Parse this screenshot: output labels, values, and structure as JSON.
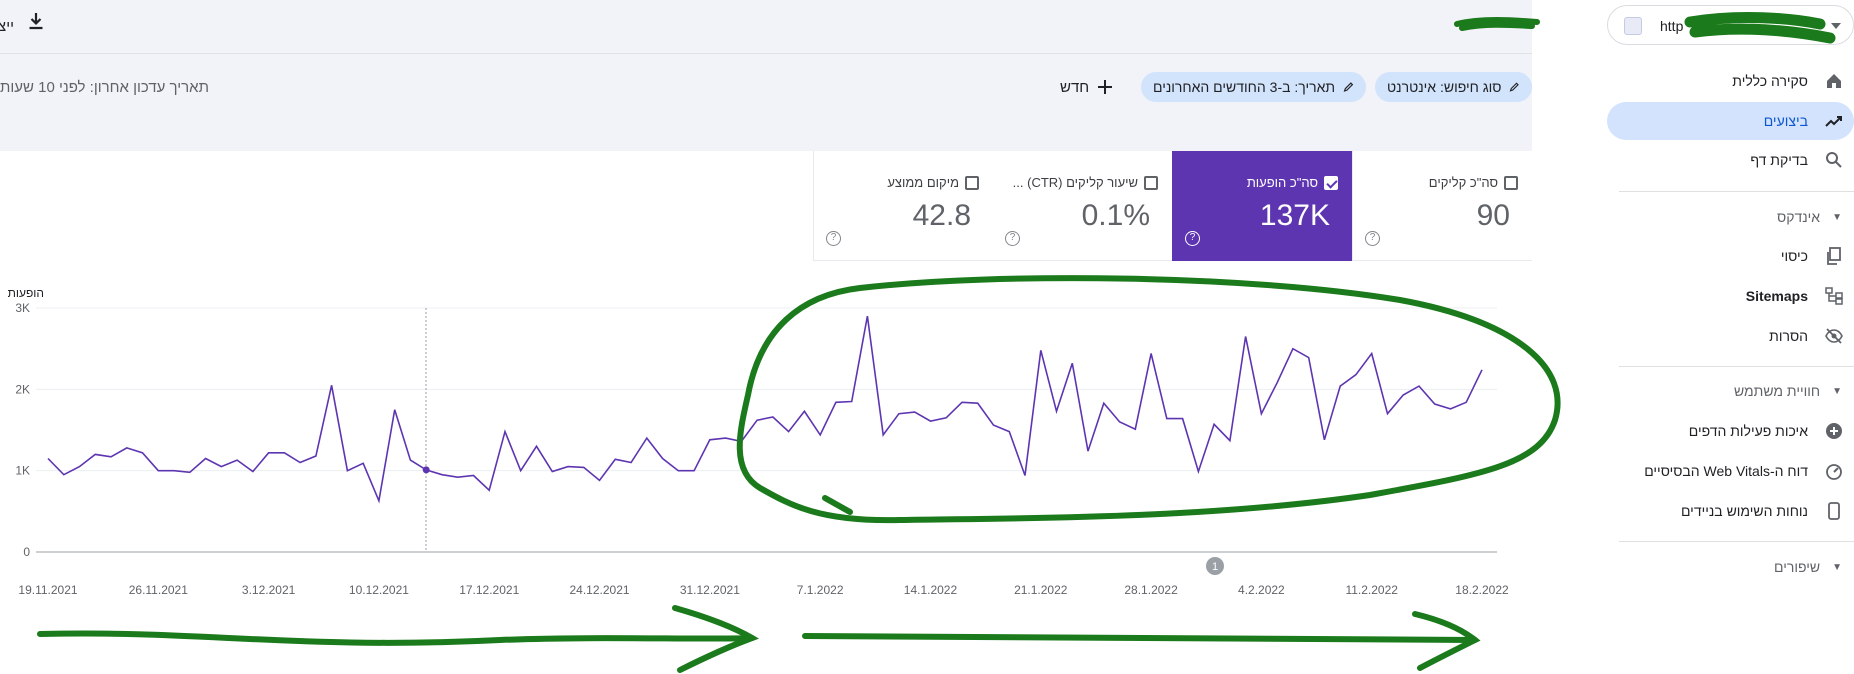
{
  "header": {
    "export_label": "ייצא",
    "property_url": "http"
  },
  "filters": {
    "search_type": "סוג חיפוש: אינטרנט",
    "date": "תאריך: ב-3 החודשים האחרונים",
    "new_label": "חדש",
    "last_updated": "תאריך עדכון אחרון: לפני 10 שעות"
  },
  "metrics": [
    {
      "label": "סה\"כ קליקים",
      "value": "90",
      "active": false
    },
    {
      "label": "סה\"כ הופעות",
      "value": "137K",
      "active": true
    },
    {
      "label": "שיעור קליקים (CTR) ...",
      "value": "0.1%",
      "active": false
    },
    {
      "label": "מיקום ממוצע",
      "value": "42.8",
      "active": false
    }
  ],
  "sidebar": {
    "items": [
      {
        "label": "סקירה כללית",
        "icon": "home-icon"
      },
      {
        "label": "ביצועים",
        "icon": "trending-up-icon",
        "active": true
      },
      {
        "label": "בדיקת דף",
        "icon": "search-icon"
      }
    ],
    "section_index": "אינדקס",
    "index_items": [
      {
        "label": "כיסוי",
        "icon": "copy-icon"
      },
      {
        "label": "Sitemaps",
        "icon": "sitemap-icon"
      },
      {
        "label": "הסרות",
        "icon": "eye-off-icon"
      }
    ],
    "section_experience": "חוויית משתמש",
    "experience_items": [
      {
        "label": "איכות פעילות הדפים",
        "icon": "plus-circle-icon"
      },
      {
        "label": "דוח ה-Web Vitals הבסיסיים",
        "icon": "gauge-icon"
      },
      {
        "label": "נוחות השימוש בניידים",
        "icon": "phone-icon"
      }
    ],
    "section_enhancements": "שיפורים"
  },
  "chart_data": {
    "type": "line",
    "ylabel": "הופעות",
    "yticks": [
      "0",
      "1K",
      "2K",
      "3K"
    ],
    "ylim": [
      0,
      3000
    ],
    "xticks": [
      "19.11.2021",
      "26.11.2021",
      "3.12.2021",
      "10.12.2021",
      "17.12.2021",
      "24.12.2021",
      "31.12.2021",
      "7.1.2022",
      "14.1.2022",
      "21.1.2022",
      "28.1.2022",
      "4.2.2022",
      "11.2.2022",
      "18.2.2022"
    ],
    "annotation_marker": "1",
    "series": [
      {
        "color": "#5e35b1",
        "values": [
          1150,
          950,
          1050,
          1200,
          1170,
          1280,
          1220,
          1000,
          1000,
          980,
          1150,
          1050,
          1130,
          990,
          1220,
          1220,
          1100,
          1180,
          2050,
          1000,
          1090,
          630,
          1750,
          1130,
          1010,
          950,
          920,
          940,
          760,
          1480,
          1000,
          1300,
          990,
          1050,
          1040,
          880,
          1140,
          1100,
          1400,
          1150,
          1000,
          1000,
          1380,
          1400,
          1360,
          1620,
          1660,
          1480,
          1730,
          1440,
          1840,
          1850,
          2900,
          1440,
          1700,
          1720,
          1610,
          1650,
          1840,
          1830,
          1560,
          1480,
          940,
          2480,
          1730,
          2320,
          1240,
          1830,
          1600,
          1510,
          2440,
          1640,
          1640,
          990,
          1570,
          1370,
          2650,
          1700,
          2080,
          2500,
          2390,
          1380,
          2040,
          2180,
          2440,
          1700,
          1930,
          2040,
          1820,
          1760,
          1840,
          2240
        ]
      }
    ]
  }
}
